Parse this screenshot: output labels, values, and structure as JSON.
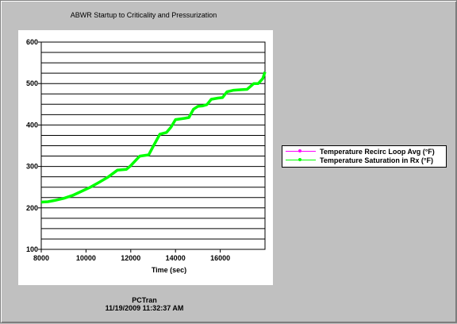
{
  "chart_data": {
    "type": "line",
    "title": "ABWR Startup to Criticality and Pressurization",
    "xlabel": "Time (sec)",
    "ylabel": "",
    "xlim": [
      8000,
      18000
    ],
    "ylim": [
      100,
      600
    ],
    "xticks": [
      8000,
      10000,
      12000,
      14000,
      16000
    ],
    "xtick_labels": [
      "8000",
      "10000",
      "12000",
      "14000",
      "16000"
    ],
    "yticks": [
      100,
      200,
      300,
      400,
      500,
      600
    ],
    "ytick_labels": [
      "100",
      "200",
      "300",
      "400",
      "500",
      "600"
    ],
    "grid": "horizontal",
    "legend_position": "right",
    "series": [
      {
        "name": "Temperature Recirc Loop Avg (°F)",
        "color": "#ff00ff",
        "x": [
          8000,
          8300,
          8600,
          9000,
          9400,
          9800,
          10200,
          10600,
          11000,
          11400,
          11800,
          12000,
          12400,
          12800,
          13000,
          13300,
          13600,
          13800,
          14000,
          14400,
          14600,
          14800,
          15000,
          15200,
          15400,
          15600,
          15900,
          16100,
          16300,
          16600,
          16900,
          17200,
          17500,
          17700,
          17900,
          18000
        ],
        "y": [
          214,
          215,
          218,
          223,
          230,
          240,
          250,
          262,
          275,
          291,
          293,
          302,
          325,
          328,
          348,
          378,
          382,
          395,
          413,
          416,
          418,
          438,
          445,
          446,
          449,
          462,
          465,
          466,
          480,
          484,
          485,
          486,
          500,
          500,
          512,
          528
        ]
      },
      {
        "name": "Temperature Saturation  in Rx (°F)",
        "color": "#00ff00",
        "x": [
          8000,
          8300,
          8600,
          9000,
          9400,
          9800,
          10200,
          10600,
          11000,
          11400,
          11800,
          12000,
          12400,
          12800,
          13000,
          13300,
          13600,
          13800,
          14000,
          14400,
          14600,
          14800,
          15000,
          15200,
          15400,
          15600,
          15900,
          16100,
          16300,
          16600,
          16900,
          17200,
          17500,
          17700,
          17900,
          18000
        ],
        "y": [
          214,
          215,
          218,
          223,
          230,
          240,
          250,
          262,
          275,
          291,
          293,
          302,
          325,
          328,
          348,
          378,
          382,
          395,
          413,
          416,
          418,
          438,
          445,
          446,
          449,
          462,
          465,
          466,
          480,
          484,
          485,
          486,
          500,
          500,
          512,
          528
        ]
      }
    ]
  },
  "footer": {
    "program": "PCTran",
    "timestamp": "11/19/2009 11:32:37 AM"
  }
}
